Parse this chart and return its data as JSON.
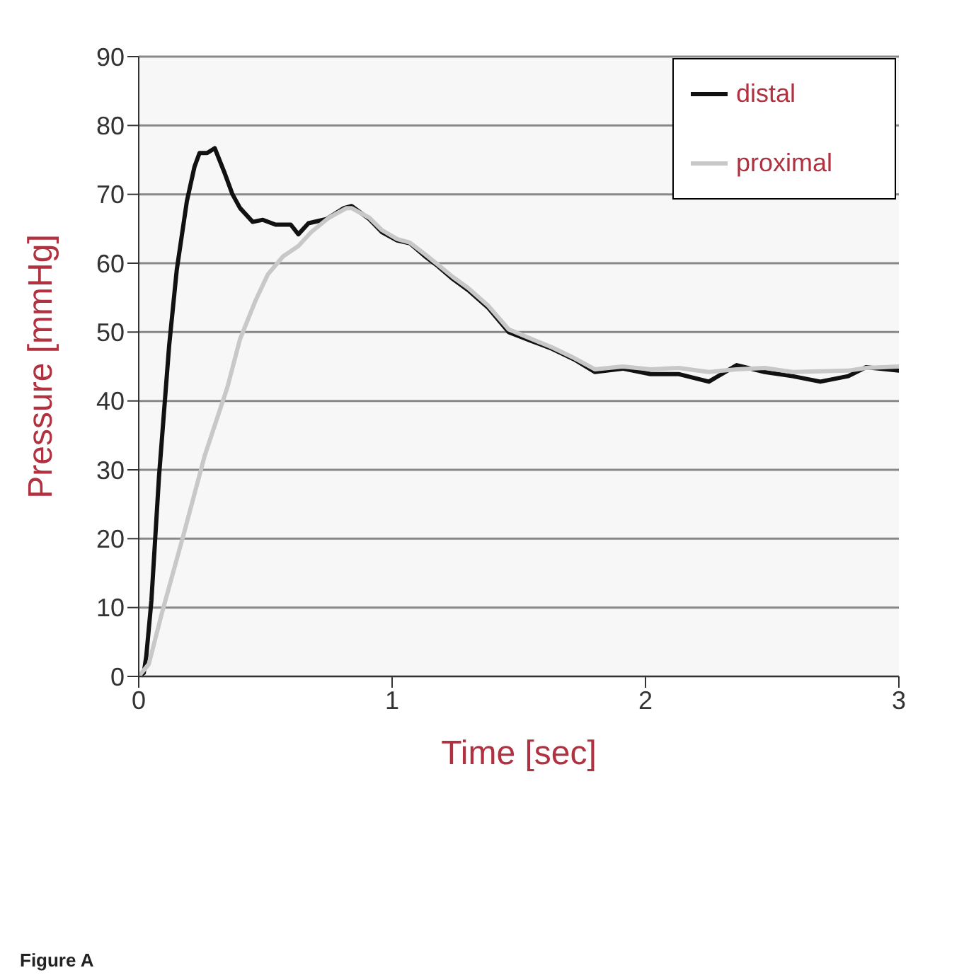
{
  "chart_data": {
    "type": "line",
    "xlabel": "Time [sec]",
    "ylabel": "Pressure [mmHg]",
    "annotations": [
      "Figure A"
    ],
    "xlim": [
      0,
      3
    ],
    "xticks": [
      0,
      1,
      2,
      3
    ],
    "ylim": [
      0,
      90
    ],
    "yticks": [
      0,
      10,
      20,
      30,
      40,
      50,
      60,
      70,
      80,
      90
    ],
    "grid": "y",
    "legend": "top right",
    "series": [
      {
        "name": "distal",
        "color": "#111111",
        "x": [
          0,
          0.02,
          0.03,
          0.05,
          0.08,
          0.12,
          0.15,
          0.19,
          0.22,
          0.24,
          0.27,
          0.3,
          0.34,
          0.37,
          0.4,
          0.45,
          0.49,
          0.54,
          0.6,
          0.63,
          0.67,
          0.74,
          0.81,
          0.84,
          0.91,
          0.96,
          1.02,
          1.07,
          1.13,
          1.18,
          1.24,
          1.3,
          1.38,
          1.46,
          1.55,
          1.63,
          1.72,
          1.8,
          1.91,
          2.02,
          2.13,
          2.25,
          2.36,
          2.47,
          2.58,
          2.69,
          2.8,
          2.87,
          3
        ],
        "values": [
          0,
          0.5,
          3,
          11,
          29,
          48,
          59,
          69,
          74,
          76,
          76,
          76.7,
          73,
          70,
          68,
          66,
          66.3,
          65.6,
          65.6,
          64.2,
          65.8,
          66.4,
          68,
          68.3,
          66.4,
          64.5,
          63.3,
          62.9,
          61,
          59.6,
          57.7,
          56.1,
          53.5,
          50,
          48.7,
          47.6,
          46,
          44.2,
          44.7,
          43.9,
          43.9,
          42.8,
          45.2,
          44.2,
          43.6,
          42.8,
          43.6,
          44.9,
          44.4
        ]
      },
      {
        "name": "proximal",
        "color": "#c8c8c8",
        "x": [
          0,
          0.04,
          0.09,
          0.18,
          0.26,
          0.35,
          0.4,
          0.46,
          0.51,
          0.57,
          0.63,
          0.68,
          0.75,
          0.82,
          0.84,
          0.91,
          0.96,
          1.02,
          1.07,
          1.13,
          1.18,
          1.24,
          1.3,
          1.38,
          1.46,
          1.55,
          1.63,
          1.72,
          1.8,
          1.91,
          2.02,
          2.13,
          2.25,
          2.36,
          2.47,
          2.58,
          2.69,
          2.8,
          2.87,
          3
        ],
        "values": [
          0,
          1.8,
          9,
          21,
          32,
          42,
          49,
          54.5,
          58.4,
          61,
          62.5,
          64.5,
          66.6,
          68,
          68,
          66.6,
          64.8,
          63.5,
          63,
          61.3,
          59.8,
          58,
          56.4,
          53.8,
          50.4,
          49,
          47.8,
          46.2,
          44.6,
          45,
          44.6,
          44.8,
          44.2,
          44.6,
          44.8,
          44.2,
          44.3,
          44.4,
          44.8,
          45
        ]
      }
    ]
  }
}
